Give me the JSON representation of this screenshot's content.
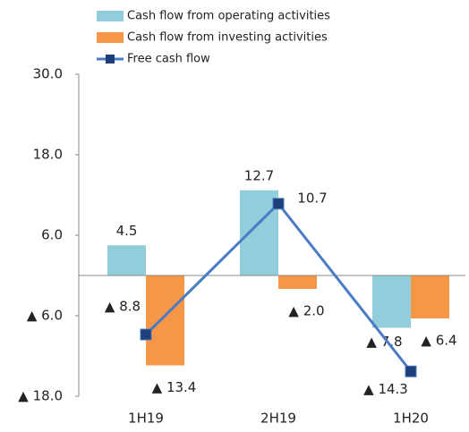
{
  "chart_data": {
    "type": "bar_line",
    "categories": [
      "1H19",
      "2H19",
      "1H20"
    ],
    "series": [
      {
        "name": "Cash flow from operating activities",
        "color": "#92cddc",
        "type": "bar",
        "values": [
          4.5,
          12.7,
          -7.8
        ],
        "value_labels": [
          "4.5",
          "12.7",
          "▲ 7.8"
        ]
      },
      {
        "name": "Cash flow from investing activities",
        "color": "#f79646",
        "type": "bar",
        "values": [
          -13.4,
          -2.0,
          -6.4
        ],
        "value_labels": [
          "▲ 13.4",
          "▲ 2.0",
          "▲ 6.4"
        ]
      },
      {
        "name": "Free cash flow",
        "color": "#4a7bc4",
        "marker_color": "#1f3f7a",
        "type": "line",
        "values": [
          -8.8,
          10.7,
          -14.3
        ],
        "value_labels": [
          "▲ 8.8",
          "10.7",
          "▲ 14.3"
        ]
      }
    ],
    "ylim": [
      -18,
      30
    ],
    "yticks": [
      {
        "value": 30,
        "label": "30.0"
      },
      {
        "value": 18,
        "label": "18.0"
      },
      {
        "value": 6,
        "label": "6.0"
      },
      {
        "value": -6,
        "label": "▲ 6.0"
      },
      {
        "value": -18,
        "label": "▲ 18.0"
      }
    ],
    "grid": false
  }
}
